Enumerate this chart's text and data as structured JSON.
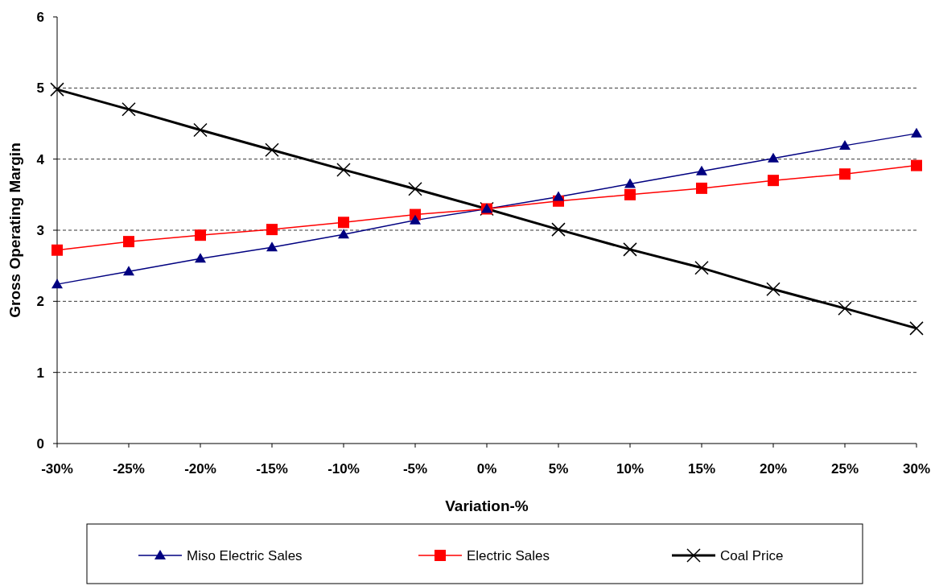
{
  "chart_data": {
    "type": "line",
    "xlabel": "Variation-%",
    "ylabel": "Gross Operating Margin",
    "categories": [
      "-30%",
      "-25%",
      "-20%",
      "-15%",
      "-10%",
      "-5%",
      "0%",
      "5%",
      "10%",
      "15%",
      "20%",
      "25%",
      "30%"
    ],
    "ylim": [
      0,
      6
    ],
    "yticks": [
      0,
      1,
      2,
      3,
      4,
      5,
      6
    ],
    "grid": "y",
    "legend": "bottom",
    "series": [
      {
        "name": "Miso Electric Sales",
        "color": "#000080",
        "marker": "triangle",
        "values": [
          2.24,
          2.42,
          2.6,
          2.76,
          2.94,
          3.14,
          3.3,
          3.47,
          3.65,
          3.83,
          4.01,
          4.19,
          4.36
        ]
      },
      {
        "name": "Electric Sales",
        "color": "#ff0000",
        "marker": "square",
        "values": [
          2.72,
          2.84,
          2.93,
          3.01,
          3.11,
          3.22,
          3.3,
          3.41,
          3.5,
          3.59,
          3.7,
          3.79,
          3.91
        ]
      },
      {
        "name": "Coal Price",
        "color": "#000000",
        "marker": "cross",
        "values": [
          4.98,
          4.7,
          4.41,
          4.13,
          3.85,
          3.58,
          3.3,
          3.01,
          2.73,
          2.47,
          2.17,
          1.9,
          1.62
        ]
      }
    ]
  }
}
